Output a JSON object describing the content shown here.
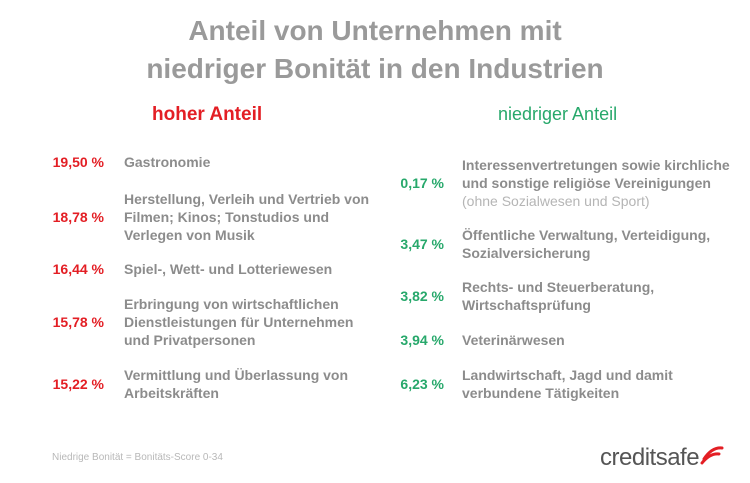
{
  "title": {
    "line1": "Anteil von Unternehmen mit",
    "line2": "niedriger Bonität in den Industrien"
  },
  "high": {
    "heading": "hoher Anteil",
    "items": [
      {
        "pct": "19,50 %",
        "label": "Gastronomie"
      },
      {
        "pct": "18,78 %",
        "label": "Herstellung, Verleih und Vertrieb von Filmen; Kinos; Tonstudios und Verlegen von Musik"
      },
      {
        "pct": "16,44 %",
        "label": "Spiel-, Wett- und Lotteriewesen"
      },
      {
        "pct": "15,78 %",
        "label": "Erbringung von wirtschaftlichen Dienstleistungen für Unternehmen und Privatpersonen"
      },
      {
        "pct": "15,22 %",
        "label": "Vermittlung und Überlassung von Arbeitskräften"
      }
    ]
  },
  "low": {
    "heading": "niedriger Anteil",
    "items": [
      {
        "pct": "0,17 %",
        "label": "Interessenvertretungen sowie kirchliche und sonstige religiöse Vereinigungen",
        "sub": "(ohne Sozialwesen und Sport)"
      },
      {
        "pct": "3,47 %",
        "label": "Öffentliche Verwaltung, Verteidigung, Sozialversicherung"
      },
      {
        "pct": "3,82 %",
        "label": "Rechts- und Steuerberatung, Wirtschaftsprüfung"
      },
      {
        "pct": "3,94 %",
        "label": "Veterinärwesen"
      },
      {
        "pct": "6,23 %",
        "label": "Landwirtschaft, Jagd und damit verbundene Tätigkeiten"
      }
    ]
  },
  "footnote": "Niedrige Bonität = Bonitäts-Score 0-34",
  "logo": {
    "text": "creditsafe",
    "accent_color": "#e31e24"
  },
  "colors": {
    "high": "#e31e24",
    "low": "#27a86b",
    "title": "#9a9a9a",
    "label": "#8c8c8c"
  }
}
